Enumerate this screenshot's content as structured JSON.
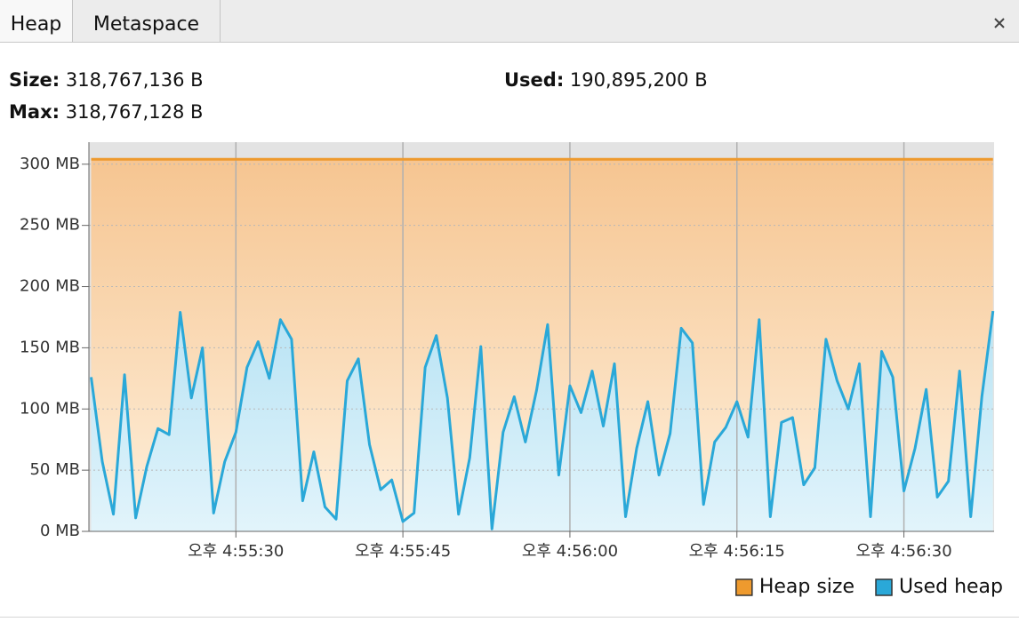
{
  "tabs": [
    "Heap",
    "Metaspace"
  ],
  "stats": [
    {
      "label": "Size:",
      "value": "318,767,136 B"
    },
    {
      "label": "Used:",
      "value": "190,895,200 B"
    },
    {
      "label": "Max:",
      "value": "318,767,128 B"
    }
  ],
  "chart_data": {
    "type": "area",
    "x": [
      60917,
      60918,
      60919,
      60920,
      60921,
      60922,
      60923,
      60924,
      60925,
      60926,
      60927,
      60928,
      60929,
      60930,
      60931,
      60932,
      60933,
      60934,
      60935,
      60936,
      60937,
      60938,
      60939,
      60940,
      60941,
      60942,
      60943,
      60944,
      60945,
      60946,
      60947,
      60948,
      60949,
      60950,
      60951,
      60952,
      60953,
      60954,
      60955,
      60956,
      60957,
      60958,
      60959,
      60960,
      60961,
      60962,
      60963,
      60964,
      60965,
      60966,
      60967,
      60968,
      60969,
      60970,
      60971,
      60972,
      60973,
      60974,
      60975,
      60976,
      60977,
      60978,
      60979,
      60980,
      60981,
      60982,
      60983,
      60984,
      60985,
      60986,
      60987,
      60988,
      60989,
      60990,
      60991,
      60992,
      60993,
      60994,
      60995,
      60996,
      60997,
      60998
    ],
    "series": [
      {
        "name": "Heap size",
        "color": "#ee9a2e",
        "values": [
          304,
          304,
          304,
          304,
          304,
          304,
          304,
          304,
          304,
          304,
          304,
          304,
          304,
          304,
          304,
          304,
          304,
          304,
          304,
          304,
          304,
          304,
          304,
          304,
          304,
          304,
          304,
          304,
          304,
          304,
          304,
          304,
          304,
          304,
          304,
          304,
          304,
          304,
          304,
          304,
          304,
          304,
          304,
          304,
          304,
          304,
          304,
          304,
          304,
          304,
          304,
          304,
          304,
          304,
          304,
          304,
          304,
          304,
          304,
          304,
          304,
          304,
          304,
          304,
          304,
          304,
          304,
          304,
          304,
          304,
          304,
          304,
          304,
          304,
          304,
          304,
          304,
          304,
          304,
          304,
          304,
          304
        ]
      },
      {
        "name": "Used heap",
        "color": "#2aa8d8",
        "values": [
          126,
          57,
          14,
          128,
          11,
          53,
          84,
          79,
          179,
          109,
          150,
          15,
          57,
          81,
          134,
          155,
          125,
          173,
          157,
          25,
          65,
          20,
          10,
          123,
          141,
          71,
          34,
          42,
          8,
          15,
          134,
          160,
          109,
          14,
          60,
          151,
          2,
          81,
          110,
          73,
          115,
          169,
          46,
          119,
          97,
          131,
          86,
          137,
          12,
          68,
          106,
          46,
          80,
          166,
          154,
          22,
          73,
          85,
          106,
          77,
          173,
          12,
          89,
          93,
          38,
          52,
          157,
          123,
          100,
          137,
          12,
          147,
          126,
          33,
          68,
          116,
          28,
          41,
          131,
          12,
          110,
          180
        ]
      }
    ],
    "xlim": [
      60916.8,
      60998.1
    ],
    "xticks": [
      {
        "value": 60930,
        "label": "오후 4:55:30"
      },
      {
        "value": 60945,
        "label": "오후 4:55:45"
      },
      {
        "value": 60960,
        "label": "오후 4:56:00"
      },
      {
        "value": 60975,
        "label": "오후 4:56:15"
      },
      {
        "value": 60990,
        "label": "오후 4:56:30"
      }
    ],
    "ylim": [
      0,
      318
    ],
    "yticks": [
      {
        "value": 0,
        "label": "0 MB"
      },
      {
        "value": 50,
        "label": "50 MB"
      },
      {
        "value": 100,
        "label": "100 MB"
      },
      {
        "value": 150,
        "label": "150 MB"
      },
      {
        "value": 200,
        "label": "200 MB"
      },
      {
        "value": 250,
        "label": "250 MB"
      },
      {
        "value": 300,
        "label": "300 MB"
      }
    ],
    "grid": true,
    "legend": "bottom-right"
  }
}
